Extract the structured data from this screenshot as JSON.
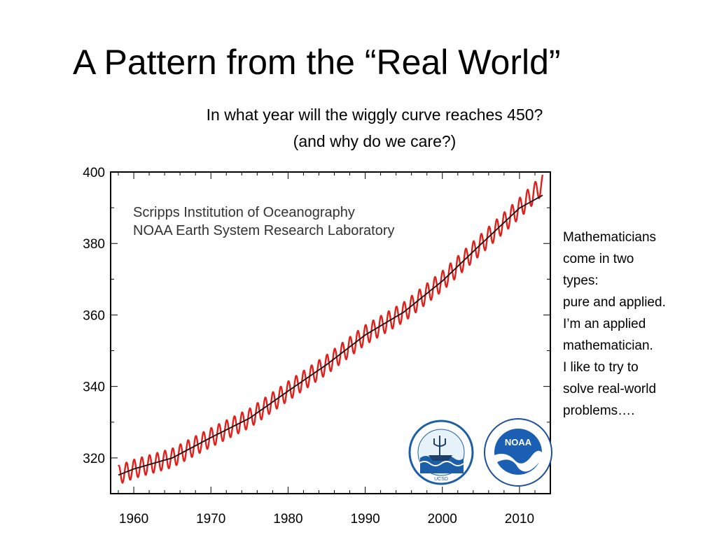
{
  "slide": {
    "title": "A Pattern from the “Real World”",
    "subtitle_line1": "In what year will the wiggly curve reaches 450?",
    "subtitle_line2": "(and why do we care?)"
  },
  "side_note": {
    "lines": [
      "Mathematicians",
      "come in two",
      "types:",
      "pure and applied.",
      "I’m an applied",
      "mathematician.",
      "I like to try to",
      "solve real-world",
      "problems…."
    ]
  },
  "chart_data": {
    "type": "line",
    "credits": [
      "Scripps Institution of Oceanography",
      "NOAA Earth System Research Laboratory"
    ],
    "xlim": [
      1957,
      2014
    ],
    "ylim": [
      310,
      400
    ],
    "x_ticks": [
      1960,
      1970,
      1980,
      1990,
      2000,
      2010
    ],
    "y_ticks": [
      320,
      340,
      360,
      380,
      400
    ],
    "grid": false,
    "series": [
      {
        "color": "#e0201b",
        "description": "monthly mean with seasonal cycle",
        "seasonal_amplitude": 3.0,
        "x": [
          1958,
          1960,
          1965,
          1970,
          1975,
          1980,
          1985,
          1990,
          1995,
          2000,
          2005,
          2010,
          2013
        ],
        "values": [
          315.2,
          316.9,
          320.0,
          325.7,
          331.1,
          338.7,
          346.1,
          354.4,
          360.8,
          369.5,
          379.8,
          389.9,
          396.5
        ]
      },
      {
        "color": "#111111",
        "description": "annual trend",
        "x": [
          1958,
          1960,
          1965,
          1970,
          1975,
          1980,
          1985,
          1990,
          1995,
          2000,
          2005,
          2010,
          2013
        ],
        "values": [
          315.2,
          316.9,
          320.0,
          325.7,
          331.1,
          338.7,
          346.1,
          354.4,
          360.8,
          369.5,
          379.8,
          389.9,
          393.5
        ]
      }
    ],
    "logos": [
      "scripps-logo",
      "noaa-logo"
    ],
    "logo_text": {
      "noaa": "NOAA",
      "ucsd": "UCSD"
    }
  }
}
